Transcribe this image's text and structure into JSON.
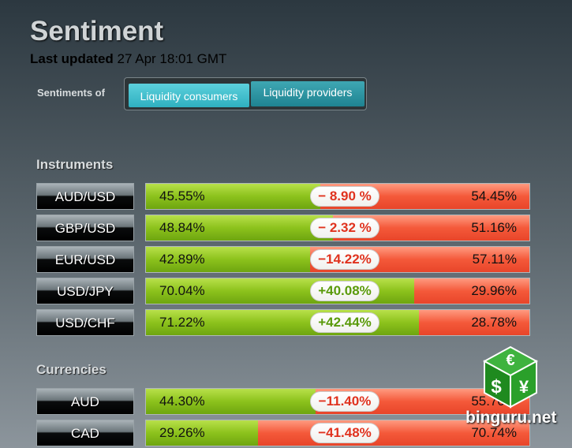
{
  "header": {
    "title": "Sentiment",
    "updated_label": "Last updated",
    "updated_time": "27 Apr 18:01 GMT"
  },
  "toggle": {
    "label": "Sentiments of",
    "options": [
      "Liquidity consumers",
      "Liquidity providers"
    ]
  },
  "sections": [
    {
      "title": "Instruments",
      "rows": [
        {
          "name": "AUD/USD",
          "long": 45.55,
          "long_label": "45.55%",
          "short": 54.45,
          "short_label": "54.45%",
          "net": -8.9,
          "net_label": "− 8.90 %"
        },
        {
          "name": "GBP/USD",
          "long": 48.84,
          "long_label": "48.84%",
          "short": 51.16,
          "short_label": "51.16%",
          "net": -2.32,
          "net_label": "− 2.32 %"
        },
        {
          "name": "EUR/USD",
          "long": 42.89,
          "long_label": "42.89%",
          "short": 57.11,
          "short_label": "57.11%",
          "net": -14.22,
          "net_label": "−14.22%"
        },
        {
          "name": "USD/JPY",
          "long": 70.04,
          "long_label": "70.04%",
          "short": 29.96,
          "short_label": "29.96%",
          "net": 40.08,
          "net_label": "+40.08%"
        },
        {
          "name": "USD/CHF",
          "long": 71.22,
          "long_label": "71.22%",
          "short": 28.78,
          "short_label": "28.78%",
          "net": 42.44,
          "net_label": "+42.44%"
        }
      ]
    },
    {
      "title": "Currencies",
      "rows": [
        {
          "name": "AUD",
          "long": 44.3,
          "long_label": "44.30%",
          "short": 55.7,
          "short_label": "55.70%",
          "net": -11.4,
          "net_label": "−11.40%"
        },
        {
          "name": "CAD",
          "long": 29.26,
          "long_label": "29.26%",
          "short": 70.74,
          "short_label": "70.74%",
          "net": -41.48,
          "net_label": "−41.48%"
        }
      ]
    }
  ],
  "watermark": "binguru.net"
}
